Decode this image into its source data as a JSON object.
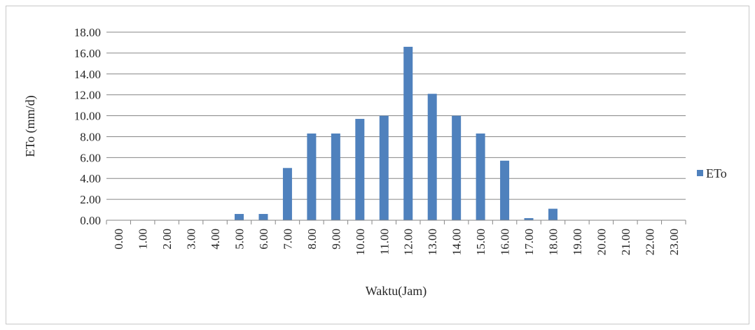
{
  "chart_data": {
    "type": "bar",
    "title": "",
    "xlabel": "Waktu(Jam)",
    "ylabel": "ETo (mm/d)",
    "ylim": [
      0,
      18
    ],
    "y_tick_step": 2,
    "y_tick_labels": [
      "0.00",
      "2.00",
      "4.00",
      "6.00",
      "8.00",
      "10.00",
      "12.00",
      "14.00",
      "16.00",
      "18.00"
    ],
    "grid": true,
    "legend_position": "right",
    "categories": [
      "0.00",
      "1.00",
      "2.00",
      "3.00",
      "4.00",
      "5.00",
      "6.00",
      "7.00",
      "8.00",
      "9.00",
      "10.00",
      "11.00",
      "12.00",
      "13.00",
      "14.00",
      "15.00",
      "16.00",
      "17.00",
      "18.00",
      "19.00",
      "20.00",
      "21.00",
      "22.00",
      "23.00"
    ],
    "series": [
      {
        "name": "ETo",
        "color": "#4f81bd",
        "values": [
          0,
          0,
          0,
          0,
          0,
          0.6,
          0.6,
          5.0,
          8.3,
          8.3,
          9.7,
          10.0,
          16.6,
          12.1,
          10.0,
          8.3,
          5.7,
          0.2,
          1.1,
          0,
          0,
          0,
          0,
          0
        ]
      }
    ]
  }
}
